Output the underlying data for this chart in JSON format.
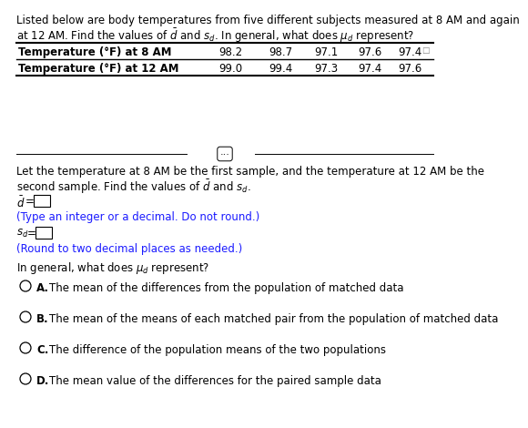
{
  "title_line1": "Listed below are body temperatures from five different subjects measured at 8 AM and again",
  "title_line2": "at 12 AM. Find the values of $\\bar{d}$ and $s_d$. In general, what does $\\mu_d$ represent?",
  "row1_label": "Temperature (°F) at 8 AM",
  "row2_label": "Temperature (°F) at 12 AM",
  "row1_values": [
    "98.2",
    "98.7",
    "97.1",
    "97.6",
    "97.4"
  ],
  "row2_values": [
    "99.0",
    "99.4",
    "97.3",
    "97.4",
    "97.6"
  ],
  "instruction_line1": "Let the temperature at 8 AM be the first sample, and the temperature at 12 AM be the",
  "instruction_line2": "second sample. Find the values of $\\bar{d}$ and $s_d$.",
  "d_bar_hint": "(Type an integer or a decimal. Do not round.)",
  "sd_hint": "(Round to two decimal places as needed.)",
  "mu_question": "In general, what does $\\mu_d$ represent?",
  "opt_A": "The mean of the differences from the population of matched data",
  "opt_B": "The mean of the means of each matched pair from the population of matched data",
  "opt_C": "The difference of the population means of the two populations",
  "opt_D": "The mean value of the differences for the paired sample data",
  "bg_color": "#ffffff",
  "text_color": "#000000",
  "hint_color": "#1a1aff",
  "fs": 8.5,
  "fs_bold": 8.5
}
